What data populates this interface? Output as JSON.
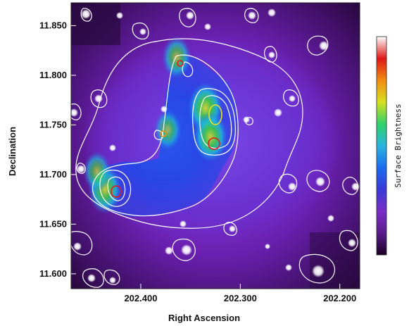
{
  "chart_data": {
    "type": "heatmap",
    "title": "",
    "xlabel": "Right Ascension",
    "ylabel": "Declination",
    "colorbar_label": "Surface Brightness",
    "x_ticks": [
      202.4,
      202.3,
      202.2
    ],
    "x_tick_labels": [
      "202.400",
      "202.300",
      "202.200"
    ],
    "y_ticks": [
      11.6,
      11.65,
      11.7,
      11.75,
      11.8,
      11.85
    ],
    "y_tick_labels": [
      "11.600",
      "11.650",
      "11.700",
      "11.750",
      "11.800",
      "11.850"
    ],
    "xlim": [
      202.47,
      202.18
    ],
    "ylim": [
      11.585,
      11.873
    ],
    "x_axis_inverted": true,
    "colormap": [
      "#1a0026",
      "#5a1c8c",
      "#7a2ec8",
      "#3a3ad8",
      "#1a6cf0",
      "#2ab4e0",
      "#2ed26a",
      "#d8e020",
      "#f08c10",
      "#e01818",
      "#ffffff"
    ],
    "contour_color": "#ffffff",
    "emission_peaks": [
      {
        "ra": 202.335,
        "dec": 11.767,
        "level": 0.88
      },
      {
        "ra": 202.33,
        "dec": 11.738,
        "level": 0.85
      },
      {
        "ra": 202.436,
        "dec": 11.685,
        "level": 0.8
      },
      {
        "ra": 202.364,
        "dec": 11.818,
        "level": 0.62
      },
      {
        "ra": 202.373,
        "dec": 11.745,
        "level": 0.55
      },
      {
        "ra": 202.444,
        "dec": 11.703,
        "level": 0.55
      }
    ]
  }
}
